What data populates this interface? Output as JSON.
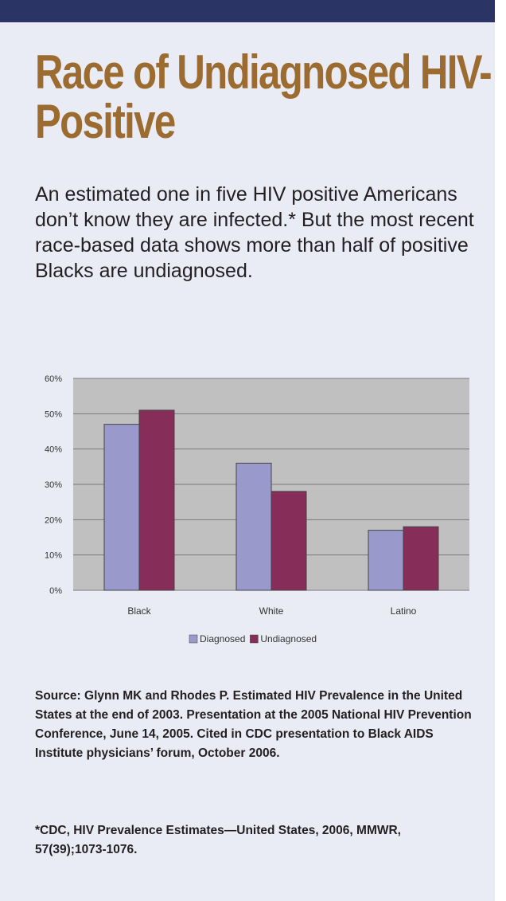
{
  "title": "Race of Undiagnosed HIV-Positive",
  "intro": "An estimated one in five HIV positive Americans don’t know they are infected.* But the most recent race-based data shows more than half of positive Blacks are undiagnosed.",
  "source": "Source: Glynn MK and Rhodes P. Estimated HIV Prevalence in the United States at the end of 2003. Presentation at the 2005 National HIV Prevention Conference, June 14, 2005. Cited in CDC presentation to Black AIDS Institute physicians’ forum, October 2006.",
  "footnote": "*CDC, HIV Prevalence Estimates—United States, 2006, MMWR, 57(39);1073-1076.",
  "colors": {
    "page": "#e9ebf5",
    "topbar": "#2a3566",
    "title": "#9c6b2f",
    "plot_bg": "#c0c0c0"
  },
  "chart_data": {
    "type": "bar",
    "categories": [
      "Black",
      "White",
      "Latino"
    ],
    "series": [
      {
        "name": "Diagnosed",
        "values": [
          47,
          36,
          17
        ],
        "color": "#9999cc"
      },
      {
        "name": "Undiagnosed",
        "values": [
          51,
          28,
          18
        ],
        "color": "#862d59"
      }
    ],
    "ylim": [
      0,
      60
    ],
    "yticks": [
      "0%",
      "10%",
      "20%",
      "30%",
      "40%",
      "50%",
      "60%"
    ],
    "grid": true,
    "legend": "bottom"
  }
}
